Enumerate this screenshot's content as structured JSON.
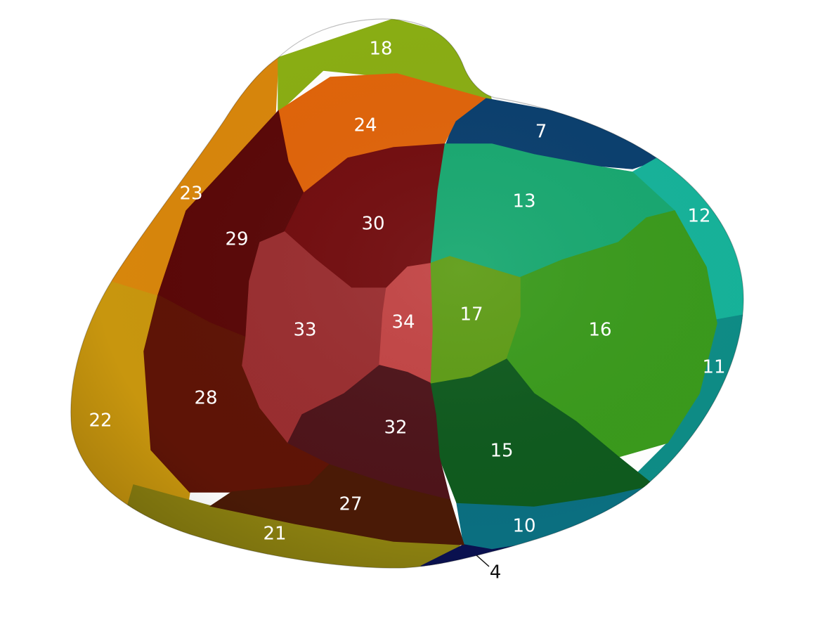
{
  "labels": {
    "s4": "4",
    "s7": "7",
    "s10": "10",
    "s11": "11",
    "s12": "12",
    "s13": "13",
    "s15": "15",
    "s16": "16",
    "s17": "17",
    "s18": "18",
    "s21": "21",
    "s22": "22",
    "s23": "23",
    "s24": "24",
    "s27": "27",
    "s28": "28",
    "s29": "29",
    "s30": "30",
    "s32": "32",
    "s33": "33",
    "s34": "34"
  },
  "colors": {
    "s4": "#0a1150",
    "s7": "#0a3f6e",
    "s10": "#0b6f80",
    "s11": "#0e8c86",
    "s12": "#16b39a",
    "s13": "#18a870",
    "s15": "#0f5a1e",
    "s16": "#3a9a1c",
    "s17": "#5e9c16",
    "s18": "#8aae14",
    "s21": "#8a7f10",
    "s22": "#c8960e",
    "s23": "#d8860c",
    "s24": "#e0640a",
    "s27": "#4a1a06",
    "s28": "#5e1406",
    "s29": "#5a0808",
    "s30": "#720c0e",
    "s32": "#4e141a",
    "s33": "#9a2e30",
    "s34": "#c24444"
  }
}
